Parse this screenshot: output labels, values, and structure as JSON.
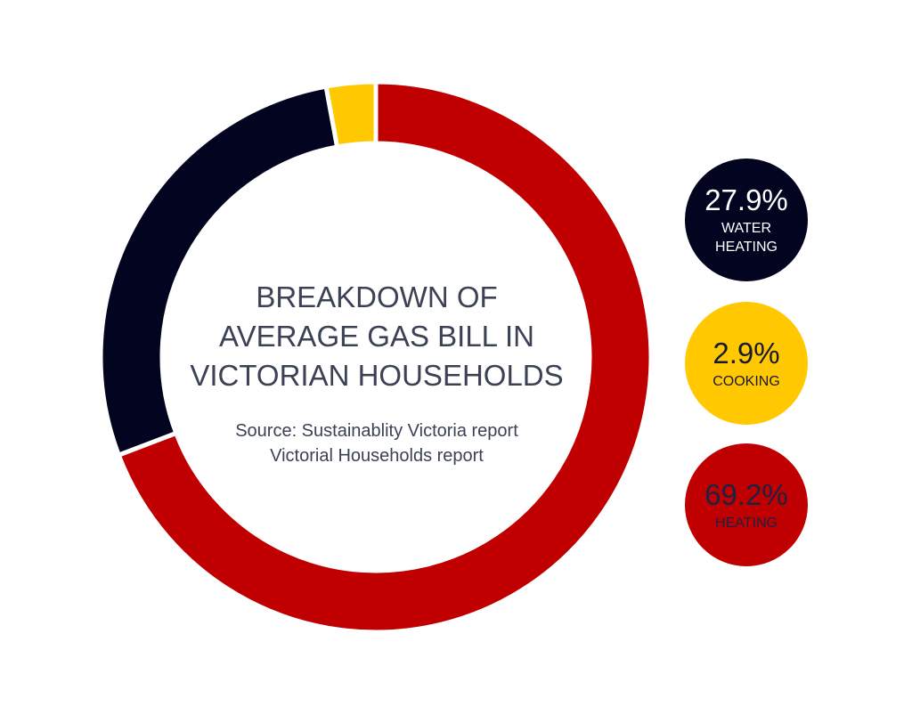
{
  "chart_data": {
    "type": "donut",
    "title": "BREAKDOWN OF AVERAGE GAS BILL IN VICTORIAN HOUSEHOLDS",
    "source": "Source: Sustainablity Victoria report Victorial Households report",
    "categories": [
      "COOKING",
      "WATER HEATING",
      "HEATING"
    ],
    "values": [
      2.9,
      27.9,
      69.2
    ],
    "value_labels": [
      "2.9%",
      "27.9%",
      "69.2%"
    ],
    "colors": [
      "#ffc800",
      "#020420",
      "#c00000"
    ]
  }
}
